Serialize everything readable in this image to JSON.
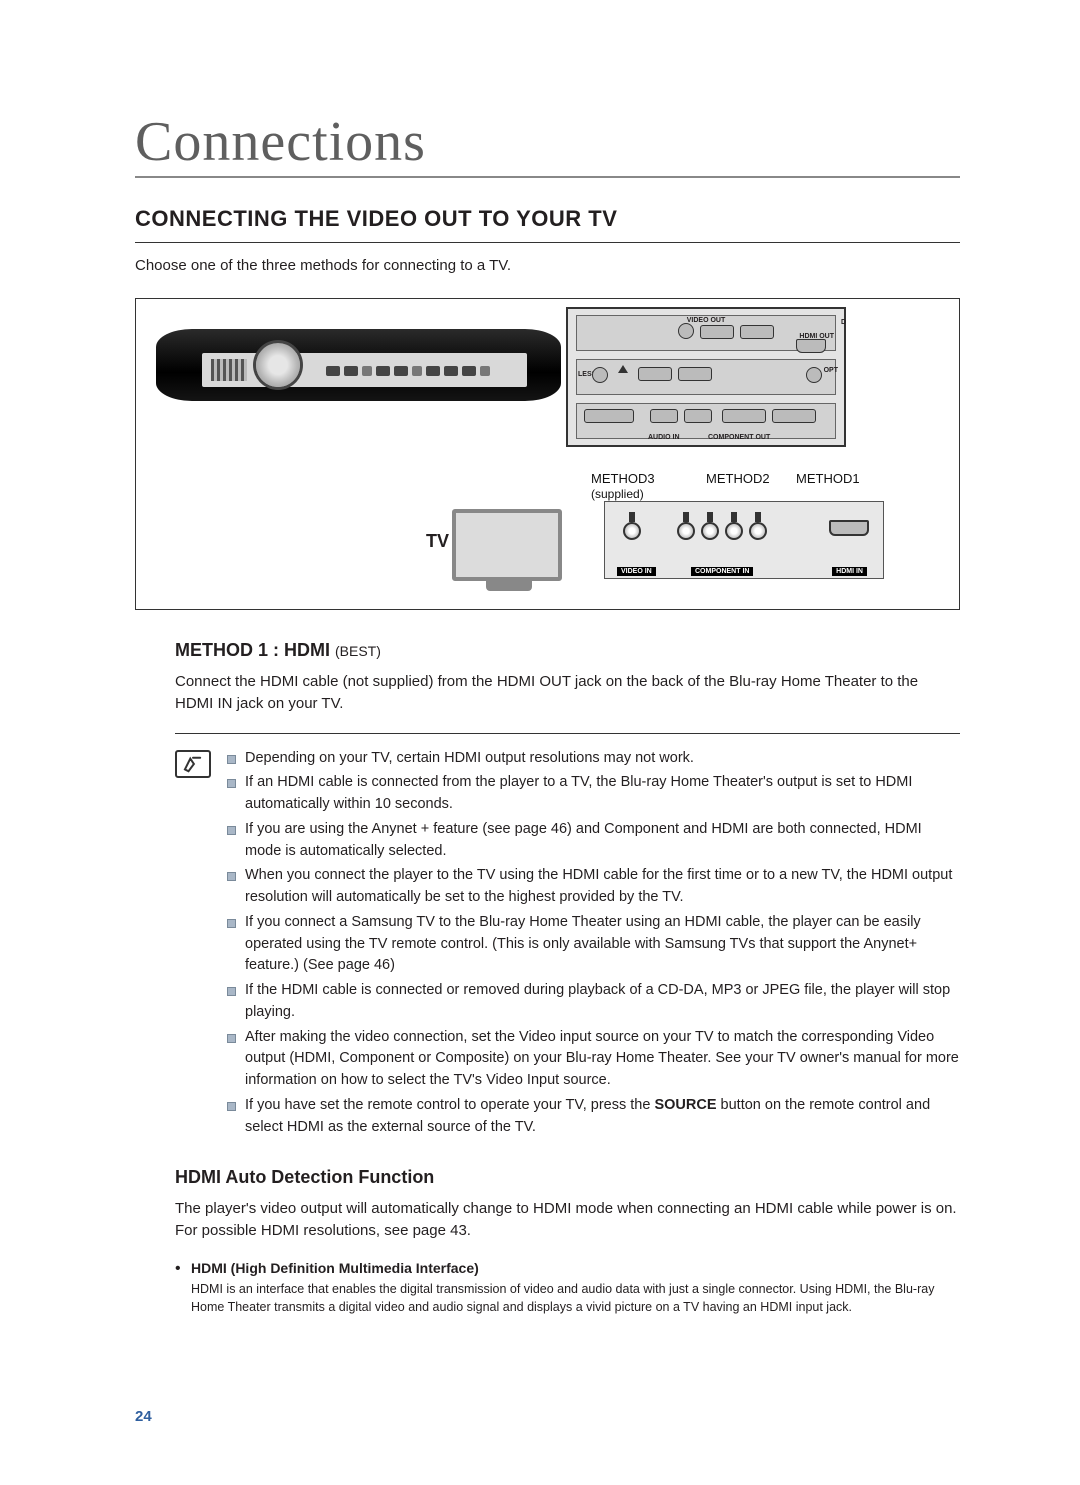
{
  "chapter": "Connections",
  "h1": "CONNECTING THE VIDEO OUT TO YOUR TV",
  "intro": "Choose one of the three methods for connecting to a TV.",
  "diagram": {
    "tv_label": "TV",
    "method1": "METHOD1",
    "method2": "METHOD2",
    "method3": "METHOD3",
    "method3_sub": "(supplied)",
    "zoom": {
      "video_out": "VIDEO OUT",
      "hdmi_out": "HDMI OUT",
      "audio_in": "AUDIO IN",
      "component_out": "COMPONENT OUT",
      "less": "LESS",
      "opt": "OPT",
      "d": "D"
    },
    "tv_jacks": {
      "video_in": "VIDEO IN",
      "component_in": "COMPONENT IN",
      "hdmi_in": "HDMI IN"
    }
  },
  "method1": {
    "title": "METHOD 1 : HDMI ",
    "sub": "(BEST)",
    "body": "Connect the HDMI cable (not supplied) from the HDMI OUT jack on the back of the Blu-ray Home Theater to the HDMI IN jack on your TV."
  },
  "notes": [
    "Depending on your TV, certain HDMI output resolutions may not work.",
    "If an HDMI cable is connected from the player to a TV, the Blu-ray Home Theater's output is set to HDMI automatically within 10 seconds.",
    "If you are using the Anynet + feature (see page 46) and Component and HDMI are both connected, HDMI mode is automatically selected.",
    "When you connect the player to the TV using the HDMI cable for the first time or to a new TV, the HDMI output resolution will automatically be set to the highest provided by the TV.",
    "If you connect a Samsung TV to the Blu-ray Home Theater using an HDMI cable, the player can be easily operated using the TV remote control. (This is only available with Samsung TVs that support the Anynet+ feature.) (See page 46)",
    "If the HDMI cable is connected or removed during playback of a CD-DA, MP3 or JPEG file, the player will stop playing.",
    "After making the video connection, set the Video input source on your TV to match the corresponding Video output (HDMI, Component or Composite) on your Blu-ray Home Theater. See your TV owner's manual for more information on how to select the TV's Video Input source.",
    "If you have set the remote control to operate your TV, press the <b>SOURCE</b> button on the remote control and select HDMI as the external source of the TV."
  ],
  "auto": {
    "title": "HDMI Auto Detection Function",
    "body": "The player's video output will automatically change to HDMI mode when connecting an HDMI cable while power is on. For possible HDMI resolutions, see page 43."
  },
  "hdmi_def": {
    "dt": "HDMI (High Definition Multimedia Interface)",
    "dd": "HDMI is an interface that enables the digital transmission of video and audio data with just a single connector. Using HDMI, the Blu-ray Home Theater transmits a digital video and audio signal and displays a vivid picture on a TV having an HDMI input jack."
  },
  "page": "24",
  "colors": {
    "bullet": "#a9b7c7",
    "pagenum": "#2f5f9f"
  }
}
